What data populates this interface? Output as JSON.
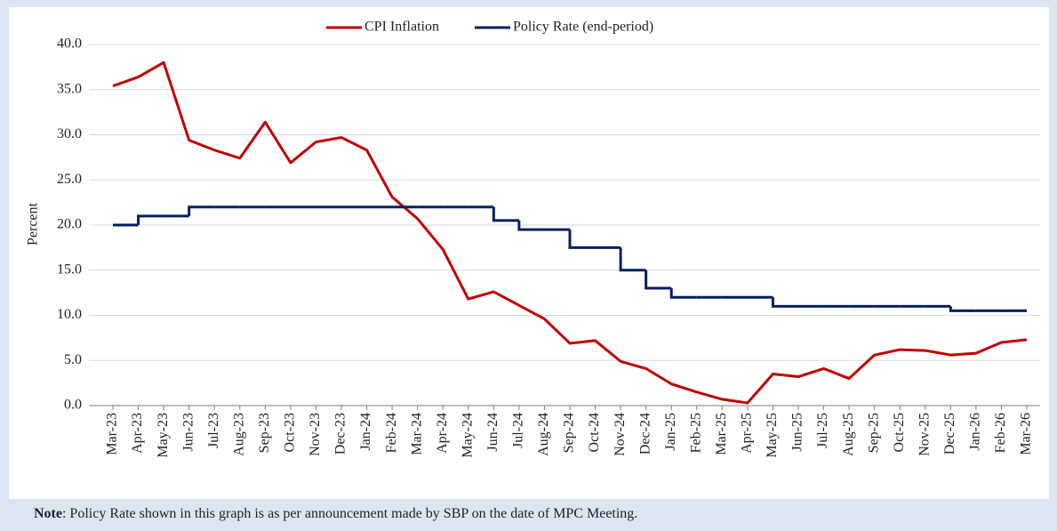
{
  "chart_data": {
    "type": "line",
    "categories": [
      "Mar-23",
      "Apr-23",
      "May-23",
      "Jun-23",
      "Jul-23",
      "Aug-23",
      "Sep-23",
      "Oct-23",
      "Nov-23",
      "Dec-23",
      "Jan-24",
      "Feb-24",
      "Mar-24",
      "Apr-24",
      "May-24",
      "Jun-24",
      "Jul-24",
      "Aug-24",
      "Sep-24",
      "Oct-24",
      "Nov-24",
      "Dec-24",
      "Jan-25",
      "Feb-25",
      "Mar-25",
      "Apr-25",
      "May-25",
      "Jun-25",
      "Jul-25",
      "Aug-25",
      "Sep-25",
      "Oct-25",
      "Nov-25",
      "Dec-25",
      "Jan-26",
      "Feb-26",
      "Mar-26"
    ],
    "y_label": "Percent",
    "series": [
      {
        "name": "CPI Inflation",
        "color": "#c00000",
        "values": [
          35.4,
          36.4,
          38.0,
          29.4,
          28.3,
          27.4,
          31.4,
          26.9,
          29.2,
          29.7,
          28.3,
          23.1,
          20.7,
          17.3,
          11.8,
          12.6,
          11.1,
          9.6,
          6.9,
          7.2,
          4.9,
          4.1,
          2.4,
          1.5,
          0.7,
          0.3,
          3.5,
          3.2,
          4.1,
          3.0,
          5.6,
          6.2,
          6.1,
          5.6,
          5.8,
          7.0,
          7.3
        ]
      },
      {
        "name": "Policy Rate (end-period)",
        "color": "#002060",
        "step": true,
        "values": [
          20,
          21,
          21,
          22,
          22,
          22,
          22,
          22,
          22,
          22,
          22,
          22,
          22,
          22,
          22,
          20.5,
          19.5,
          19.5,
          17.5,
          17.5,
          15,
          13,
          12,
          12,
          12,
          12,
          11,
          11,
          11,
          11,
          11,
          11,
          11,
          10.5,
          10.5,
          10.5,
          10.5
        ]
      }
    ],
    "ylim": [
      0,
      40
    ],
    "yticks": [
      {
        "value": 0,
        "label": "0.0"
      },
      {
        "value": 5,
        "label": "5.0"
      },
      {
        "value": 10,
        "label": "10.0"
      },
      {
        "value": 15,
        "label": "15.0"
      },
      {
        "value": 20,
        "label": "20.0"
      },
      {
        "value": 25,
        "label": "25.0"
      },
      {
        "value": 30,
        "label": "30.0"
      },
      {
        "value": 35,
        "label": "35.0"
      },
      {
        "value": 40,
        "label": "40.0"
      }
    ],
    "grid": true,
    "legend": "top",
    "note": {
      "label": "Note",
      "text": ": Policy Rate shown in this graph is as per announcement made by SBP on the date of MPC Meeting."
    }
  }
}
